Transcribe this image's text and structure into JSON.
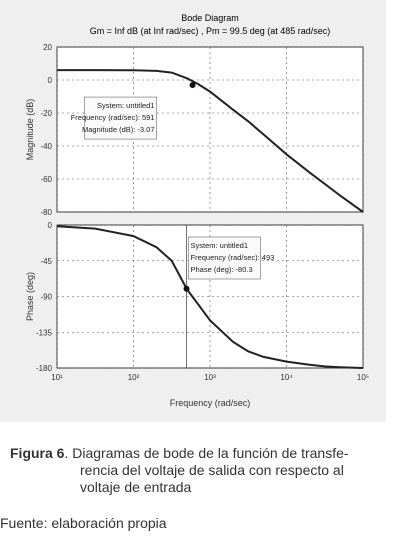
{
  "chart_data": [
    {
      "type": "line",
      "title": "Bode Diagram",
      "subtitle": "Gm = Inf dB (at Inf rad/sec) ,  Pm = 99.5 deg (at 485 rad/sec)",
      "ylabel": "Magnitude (dB)",
      "x": [
        10,
        31.6,
        100,
        200,
        316,
        500,
        700,
        1000,
        2000,
        3162,
        5000,
        10000,
        20000,
        31623,
        50000,
        100000
      ],
      "series": [
        {
          "name": "Magnitude",
          "color": "#222222",
          "values": [
            6,
            6,
            5.9,
            5.5,
            4.5,
            1,
            -2.5,
            -7,
            -18,
            -25,
            -33,
            -45,
            -56,
            -63,
            -70,
            -80
          ]
        }
      ],
      "xlim": [
        10,
        100000
      ],
      "ylim": [
        20,
        -80
      ],
      "yticks": [
        20,
        0,
        -20,
        -40,
        -60,
        -80
      ],
      "log_x": true,
      "grid": true,
      "annotations": [
        {
          "x": 591,
          "y": -3.07,
          "lines": [
            "System: untitled1",
            "Frequency (rad/sec): 591",
            "Magnitude (dB): -3.07"
          ]
        }
      ]
    },
    {
      "type": "line",
      "ylabel": "Phase (deg)",
      "xlabel": "Frequency  (rad/sec)",
      "x": [
        10,
        31.6,
        100,
        200,
        316,
        500,
        700,
        1000,
        2000,
        3162,
        5000,
        10000,
        20000,
        31623,
        50000,
        100000
      ],
      "series": [
        {
          "name": "Phase",
          "color": "#222222",
          "values": [
            -1.5,
            -4.5,
            -14,
            -28,
            -45,
            -81,
            -100,
            -120,
            -147,
            -159,
            -166,
            -172,
            -176,
            -178,
            -179,
            -180
          ]
        }
      ],
      "xlim": [
        10,
        100000
      ],
      "ylim": [
        0,
        -180
      ],
      "yticks": [
        0,
        -45,
        -90,
        -135,
        -180
      ],
      "xticks": [
        {
          "value": 10,
          "label": "10¹"
        },
        {
          "value": 100,
          "label": "10²"
        },
        {
          "value": 1000,
          "label": "10³"
        },
        {
          "value": 10000,
          "label": "10⁴"
        },
        {
          "value": 100000,
          "label": "10⁵"
        }
      ],
      "log_x": true,
      "grid": true,
      "annotations": [
        {
          "x": 493,
          "y": -80.3,
          "lines": [
            "System: untitled1",
            "Frequency (rad/sec): 493",
            "Phase (deg): -80.3"
          ]
        }
      ]
    }
  ],
  "caption": {
    "label": "Figura 6",
    "lines": [
      ". Diagramas de bode de la función de transfe-",
      "rencia del voltaje de salida con respecto al",
      "voltaje de entrada"
    ]
  },
  "source": "Fuente: elaboración propia"
}
